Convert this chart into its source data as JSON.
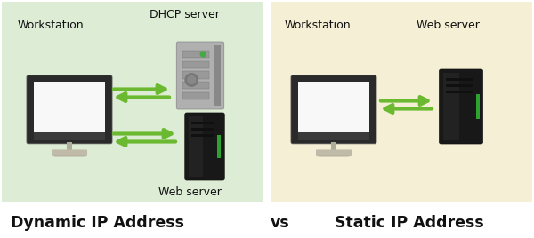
{
  "left_bg_color": "#ddecd5",
  "right_bg_color": "#f5f0d5",
  "left_title": "Dynamic IP Address",
  "vs_text": "vs",
  "right_title": "Static IP Address",
  "title_fontsize": 12.5,
  "title_color": "#111111",
  "label_fontsize": 9,
  "label_color": "#111111",
  "arrow_color": "#6ab930",
  "left_workstation_label": "Workstation",
  "left_dhcp_label": "DHCP server",
  "left_web_label": "Web server",
  "right_workstation_label": "Workstation",
  "right_web_label": "Web server"
}
